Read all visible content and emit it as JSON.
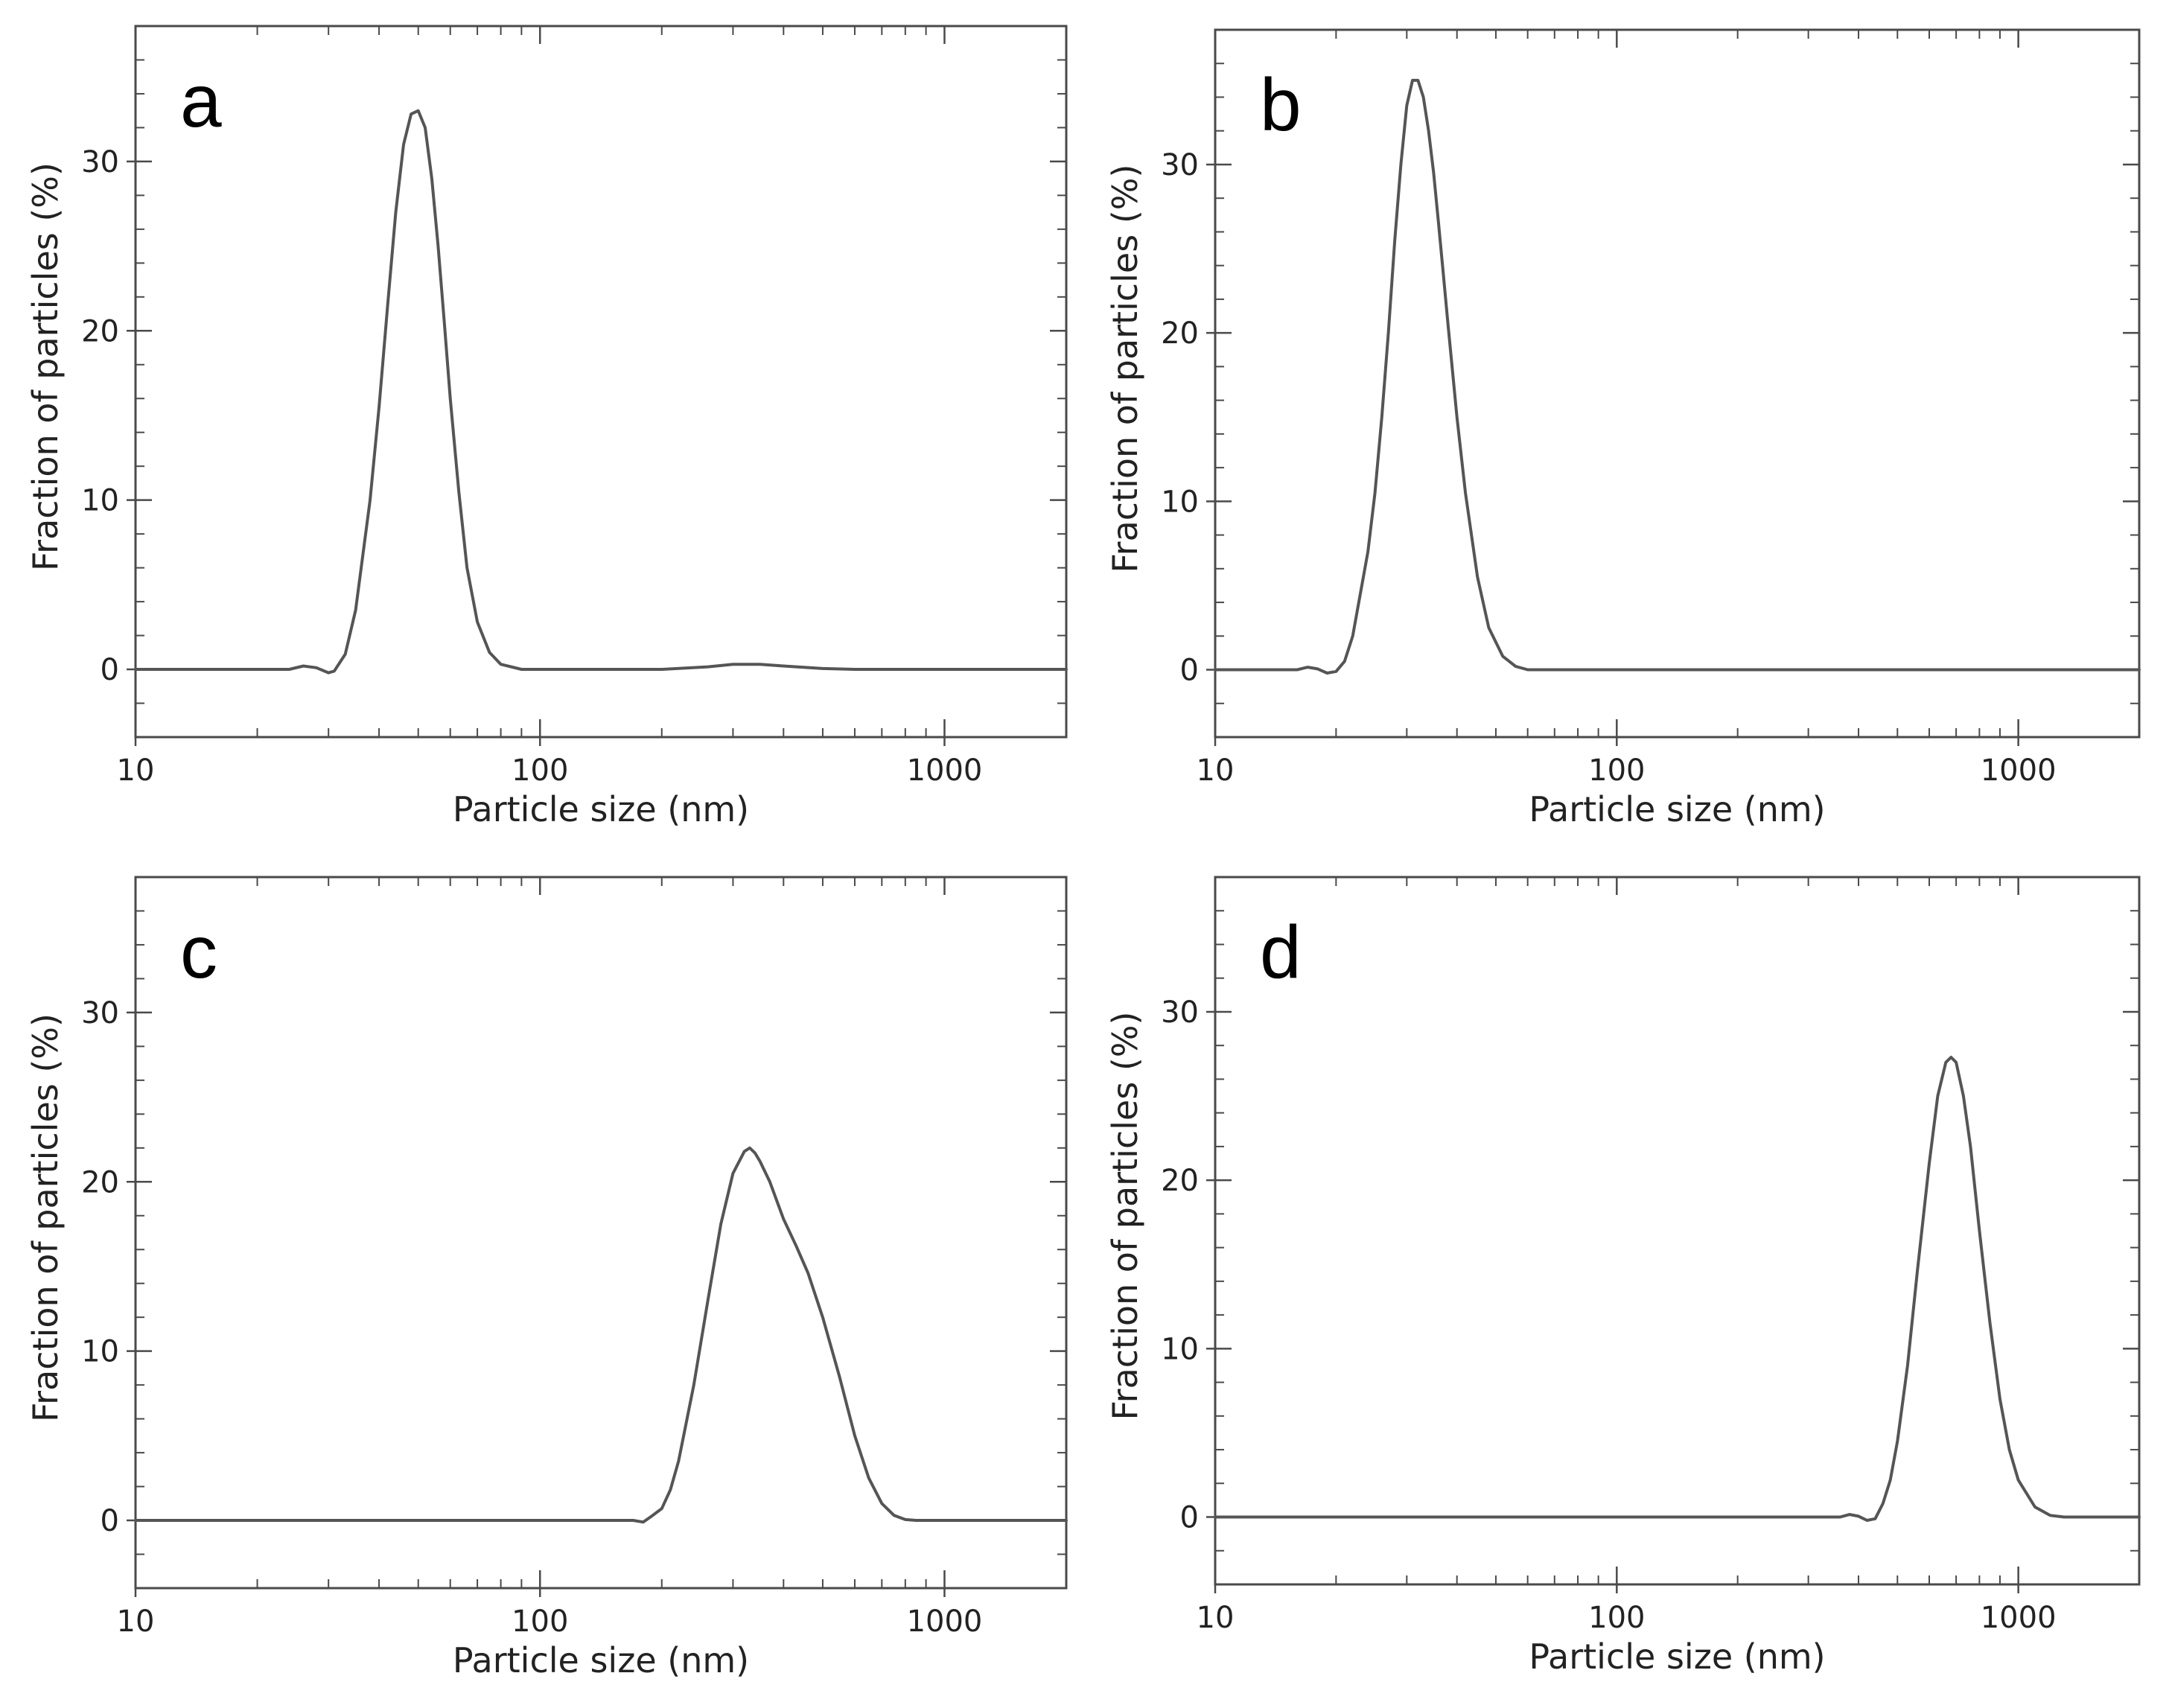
{
  "figure": {
    "colors": {
      "frame": "#4a4a4a",
      "curve": "#555555",
      "text": "#222222",
      "background": "#ffffff"
    }
  },
  "chart_data": [
    {
      "panel": "a",
      "type": "line",
      "title": "",
      "xlabel": "Particle size (nm)",
      "ylabel": "Fraction of particles (%)",
      "xscale": "log",
      "xlim": [
        10,
        2000
      ],
      "ylim": [
        -4,
        38
      ],
      "xticks": [
        {
          "value": 10,
          "label": "10"
        },
        {
          "value": 100,
          "label": "100"
        },
        {
          "value": 1000,
          "label": "1000"
        }
      ],
      "yticks": [
        {
          "value": 0,
          "label": "0"
        },
        {
          "value": 10,
          "label": "10"
        },
        {
          "value": 20,
          "label": "20"
        },
        {
          "value": 30,
          "label": "30"
        }
      ],
      "series": [
        {
          "name": "a",
          "x": [
            10,
            24,
            26,
            28,
            30,
            31,
            33,
            35,
            38,
            40,
            42,
            44,
            46,
            48,
            50,
            52,
            54,
            56,
            58,
            60,
            63,
            66,
            70,
            75,
            80,
            90,
            100,
            150,
            200,
            260,
            300,
            350,
            400,
            500,
            600,
            2000
          ],
          "y": [
            0,
            0,
            0.2,
            0.1,
            -0.2,
            -0.1,
            0.9,
            3.5,
            10,
            15.5,
            21.5,
            27,
            31,
            32.8,
            33,
            32,
            29,
            25,
            20.5,
            16,
            10.5,
            6,
            2.8,
            1,
            0.3,
            0,
            0,
            0,
            0,
            0.15,
            0.3,
            0.3,
            0.2,
            0.05,
            0,
            0
          ]
        }
      ]
    },
    {
      "panel": "b",
      "type": "line",
      "title": "",
      "xlabel": "Particle size (nm)",
      "ylabel": "Fraction of particles (%)",
      "xscale": "log",
      "xlim": [
        10,
        2000
      ],
      "ylim": [
        -4,
        38
      ],
      "xticks": [
        {
          "value": 10,
          "label": "10"
        },
        {
          "value": 100,
          "label": "100"
        },
        {
          "value": 1000,
          "label": "1000"
        }
      ],
      "yticks": [
        {
          "value": 0,
          "label": "0"
        },
        {
          "value": 10,
          "label": "10"
        },
        {
          "value": 20,
          "label": "20"
        },
        {
          "value": 30,
          "label": "30"
        }
      ],
      "series": [
        {
          "name": "b",
          "x": [
            10,
            16,
            17,
            18,
            19,
            20,
            21,
            22,
            24,
            25,
            26,
            27,
            28,
            29,
            30,
            31,
            32,
            33,
            34,
            35,
            36,
            37,
            38,
            40,
            42,
            45,
            48,
            52,
            56,
            60,
            70,
            2000
          ],
          "y": [
            0,
            0,
            0.15,
            0.05,
            -0.2,
            -0.1,
            0.5,
            2,
            7,
            10.5,
            15,
            20,
            25.5,
            30,
            33.5,
            35,
            35,
            34,
            32,
            29.5,
            26.5,
            23.5,
            20.5,
            15,
            10.5,
            5.5,
            2.5,
            0.8,
            0.2,
            0,
            0,
            0
          ]
        }
      ]
    },
    {
      "panel": "c",
      "type": "line",
      "title": "",
      "xlabel": "Particle size (nm)",
      "ylabel": "Fraction of particles (%)",
      "xscale": "log",
      "xlim": [
        10,
        2000
      ],
      "ylim": [
        -4,
        38
      ],
      "xticks": [
        {
          "value": 10,
          "label": "10"
        },
        {
          "value": 100,
          "label": "100"
        },
        {
          "value": 1000,
          "label": "1000"
        }
      ],
      "yticks": [
        {
          "value": 0,
          "label": "0"
        },
        {
          "value": 10,
          "label": "10"
        },
        {
          "value": 20,
          "label": "20"
        },
        {
          "value": 30,
          "label": "30"
        }
      ],
      "series": [
        {
          "name": "c",
          "x": [
            10,
            170,
            180,
            190,
            200,
            210,
            220,
            240,
            260,
            280,
            300,
            320,
            330,
            340,
            350,
            370,
            400,
            430,
            460,
            500,
            550,
            600,
            650,
            700,
            750,
            800,
            850,
            2000
          ],
          "y": [
            0,
            0,
            -0.1,
            0.3,
            0.7,
            1.8,
            3.5,
            8,
            13,
            17.5,
            20.5,
            21.8,
            22,
            21.7,
            21.2,
            20,
            17.8,
            16.2,
            14.6,
            12,
            8.5,
            5,
            2.5,
            1,
            0.3,
            0.05,
            0,
            0
          ]
        }
      ]
    },
    {
      "panel": "d",
      "type": "line",
      "title": "",
      "xlabel": "Particle size (nm)",
      "ylabel": "Fraction of particles (%)",
      "xscale": "log",
      "xlim": [
        10,
        2000
      ],
      "ylim": [
        -4,
        38
      ],
      "xticks": [
        {
          "value": 10,
          "label": "10"
        },
        {
          "value": 100,
          "label": "100"
        },
        {
          "value": 1000,
          "label": "1000"
        }
      ],
      "yticks": [
        {
          "value": 0,
          "label": "0"
        },
        {
          "value": 10,
          "label": "10"
        },
        {
          "value": 20,
          "label": "20"
        },
        {
          "value": 30,
          "label": "30"
        }
      ],
      "series": [
        {
          "name": "d",
          "x": [
            10,
            360,
            380,
            400,
            420,
            440,
            460,
            480,
            500,
            530,
            560,
            600,
            630,
            660,
            680,
            700,
            730,
            760,
            800,
            850,
            900,
            950,
            1000,
            1100,
            1200,
            1300,
            2000
          ],
          "y": [
            0,
            0,
            0.15,
            0.05,
            -0.2,
            -0.1,
            0.8,
            2.2,
            4.5,
            9,
            14.5,
            21,
            25,
            27,
            27.3,
            27,
            25,
            22,
            17,
            11.5,
            7,
            4,
            2.2,
            0.6,
            0.1,
            0,
            0
          ]
        }
      ]
    }
  ]
}
